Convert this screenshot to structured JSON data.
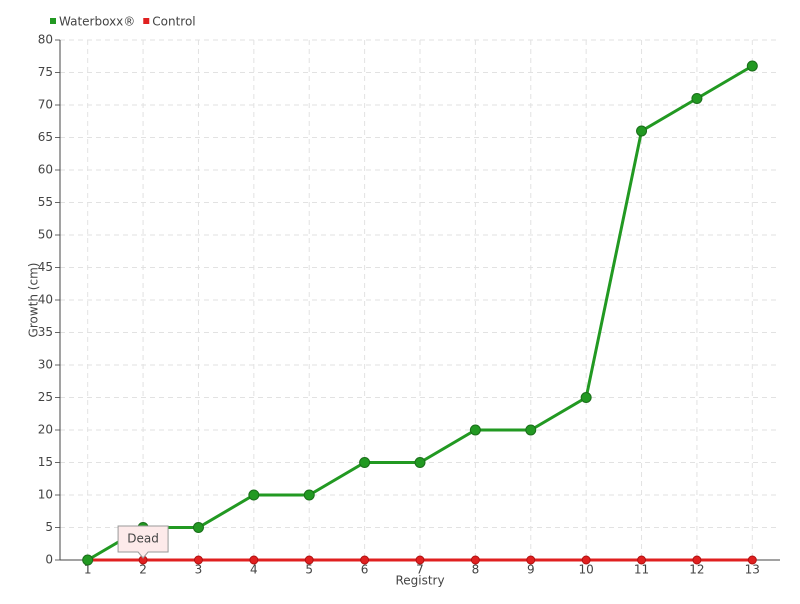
{
  "chart_data": {
    "type": "line",
    "categories": [
      "1",
      "2",
      "3",
      "4",
      "5",
      "6",
      "7",
      "8",
      "9",
      "10",
      "11",
      "12",
      "13"
    ],
    "series": [
      {
        "name": "Waterboxx®",
        "color": "#229922",
        "values": [
          0,
          5,
          5,
          10,
          10,
          15,
          15,
          20,
          20,
          25,
          66,
          71,
          76
        ]
      },
      {
        "name": "Control",
        "color": "#e02020",
        "values": [
          0,
          0,
          0,
          0,
          0,
          0,
          0,
          0,
          0,
          0,
          0,
          0,
          0
        ]
      }
    ],
    "ylim": [
      0,
      80
    ],
    "yticks": [
      0,
      5,
      10,
      15,
      20,
      25,
      30,
      35,
      40,
      45,
      50,
      55,
      60,
      65,
      70,
      75,
      80
    ],
    "xlabel": "Registry",
    "ylabel": "Growth (cm)",
    "annotation": "Dead",
    "grid": true,
    "legend": "top-left"
  }
}
